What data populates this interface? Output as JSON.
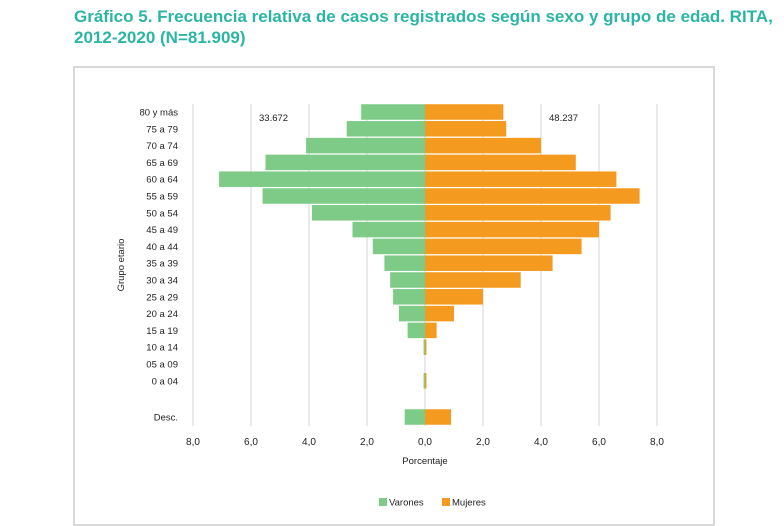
{
  "title": {
    "line1": "Gráfico 5. Frecuencia relativa de casos registrados según sexo y grupo de edad. RITA,",
    "line2": "2012-2020 (N=81.909)"
  },
  "chart_data": {
    "type": "bar",
    "orientation": "horizontal-population-pyramid",
    "categories": [
      "80 y más",
      "75 a 79",
      "70 a 74",
      "65 a 69",
      "60 a 64",
      "55 a 59",
      "50 a 54",
      "45 a 49",
      "40 a 44",
      "35 a 39",
      "30 a 34",
      "25 a 29",
      "20 a 24",
      "15 a 19",
      "10 a 14",
      "05 a 09",
      "0 a 04",
      "Desc."
    ],
    "series": [
      {
        "name": "Varones",
        "color": "#7dcb86",
        "values": [
          2.2,
          2.7,
          4.1,
          5.5,
          7.1,
          5.6,
          3.9,
          2.5,
          1.8,
          1.4,
          1.2,
          1.1,
          0.9,
          0.6,
          0.05,
          0.0,
          0.05,
          0.7
        ]
      },
      {
        "name": "Mujeres",
        "color": "#f49a1e",
        "values": [
          2.7,
          2.8,
          4.0,
          5.2,
          6.6,
          7.4,
          6.4,
          6.0,
          5.4,
          4.4,
          3.3,
          2.0,
          1.0,
          0.4,
          0.05,
          0.0,
          0.05,
          0.9
        ]
      }
    ],
    "totals": {
      "Varones": "33.672",
      "Mujeres": "48.237"
    },
    "xlabel": "Porcentaje",
    "ylabel": "Grupo etario",
    "xlim": [
      -8,
      8
    ],
    "xticks": [
      -8,
      -6,
      -4,
      -2,
      0,
      2,
      4,
      6,
      8
    ],
    "xtick_labels": [
      "8,0",
      "6,0",
      "4,0",
      "2,0",
      "0,0",
      "2,0",
      "4,0",
      "6,0",
      "8,0"
    ],
    "grid": "vertical",
    "legend_position": "bottom"
  }
}
